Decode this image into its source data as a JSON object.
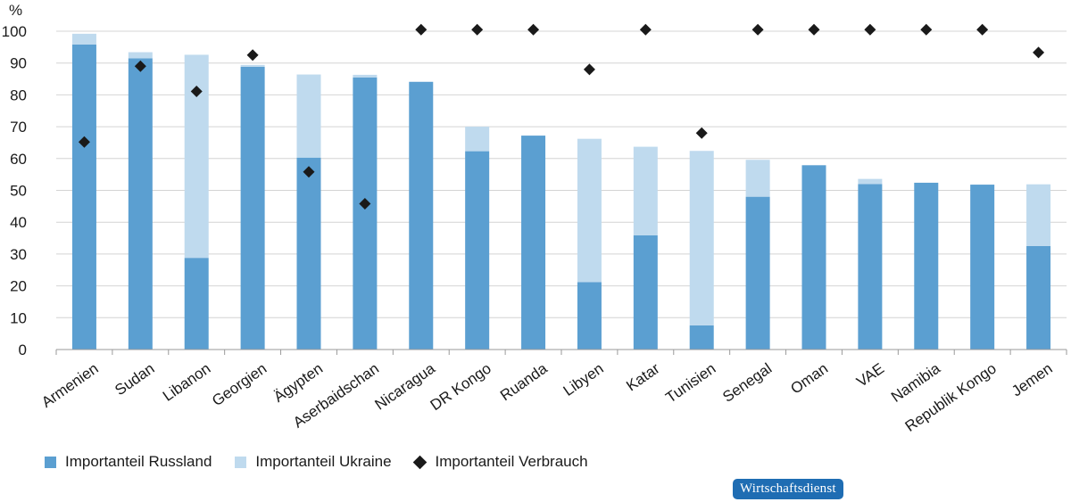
{
  "chart_data": {
    "type": "bar",
    "stacked": true,
    "y_unit_label": "%",
    "ylim": [
      0,
      100
    ],
    "yticks": [
      0,
      10,
      20,
      30,
      40,
      50,
      60,
      70,
      80,
      90,
      100
    ],
    "grid": true,
    "legend_position": "bottom-left",
    "categories": [
      "Armenien",
      "Sudan",
      "Libanon",
      "Georgien",
      "Ägypten",
      "Aserbaidschan",
      "Nicaragua",
      "DR Kongo",
      "Ruanda",
      "Libyen",
      "Katar",
      "Tunisien",
      "Senegal",
      "Oman",
      "VAE",
      "Namibia",
      "Republik Kongo",
      "Jemen"
    ],
    "series": [
      {
        "name": "Importanteil Russland",
        "kind": "bar",
        "color": "#5b9fd1",
        "values": [
          95.8,
          91.5,
          28.8,
          88.8,
          60.3,
          85.5,
          84.1,
          62.3,
          67.2,
          21.2,
          35.9,
          7.6,
          48.0,
          57.9,
          52.0,
          52.4,
          51.8,
          32.5
        ]
      },
      {
        "name": "Importanteil Ukraine",
        "kind": "bar",
        "color": "#bfdaee",
        "values": [
          3.4,
          1.9,
          63.8,
          0.6,
          26.1,
          0.8,
          0.0,
          7.7,
          0.0,
          45.0,
          27.8,
          54.8,
          11.6,
          0.0,
          1.6,
          0.0,
          0.0,
          19.4
        ]
      },
      {
        "name": "Importanteil Verbrauch",
        "kind": "marker",
        "marker": "diamond",
        "color": "#1a1a1a",
        "values": [
          65.2,
          89.0,
          81.1,
          92.5,
          55.8,
          45.8,
          100.5,
          100.5,
          100.5,
          88.0,
          100.5,
          68.0,
          100.5,
          100.5,
          100.5,
          100.5,
          100.5,
          93.3
        ]
      }
    ]
  },
  "badge": {
    "text": "Wirtschaftsdienst",
    "color": "#1f6db3"
  }
}
